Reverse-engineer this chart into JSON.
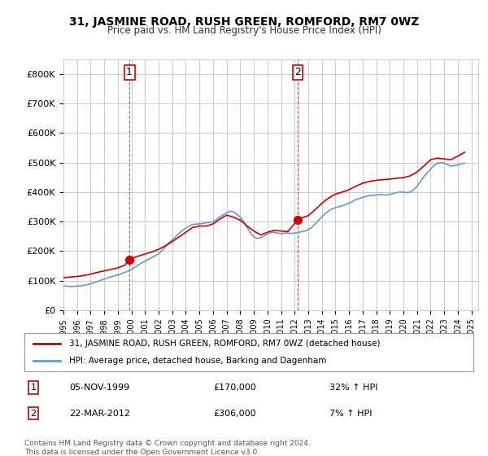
{
  "title": "31, JASMINE ROAD, RUSH GREEN, ROMFORD, RM7 0WZ",
  "subtitle": "Price paid vs. HM Land Registry's House Price Index (HPI)",
  "ylabel_ticks": [
    "£0",
    "£100K",
    "£200K",
    "£300K",
    "£400K",
    "£500K",
    "£600K",
    "£700K",
    "£800K"
  ],
  "ytick_vals": [
    0,
    100000,
    200000,
    300000,
    400000,
    500000,
    600000,
    700000,
    800000
  ],
  "ylim": [
    0,
    850000
  ],
  "xlim_start": 1995.0,
  "xlim_end": 2025.5,
  "background_color": "#ffffff",
  "grid_color": "#cccccc",
  "sale1_x": 1999.85,
  "sale1_y": 170000,
  "sale1_label": "1",
  "sale1_date": "05-NOV-1999",
  "sale1_price": "£170,000",
  "sale1_hpi": "32% ↑ HPI",
  "sale2_x": 2012.22,
  "sale2_y": 306000,
  "sale2_label": "2",
  "sale2_date": "22-MAR-2012",
  "sale2_price": "£306,000",
  "sale2_hpi": "7% ↑ HPI",
  "line_red_color": "#cc0000",
  "line_blue_color": "#6699cc",
  "legend_line1": "31, JASMINE ROAD, RUSH GREEN, ROMFORD, RM7 0WZ (detached house)",
  "legend_line2": "HPI: Average price, detached house, Barking and Dagenham",
  "footer": "Contains HM Land Registry data © Crown copyright and database right 2024.\nThis data is licensed under the Open Government Licence v3.0.",
  "hpi_data_x": [
    1995.0,
    1995.25,
    1995.5,
    1995.75,
    1996.0,
    1996.25,
    1996.5,
    1996.75,
    1997.0,
    1997.25,
    1997.5,
    1997.75,
    1998.0,
    1998.25,
    1998.5,
    1998.75,
    1999.0,
    1999.25,
    1999.5,
    1999.75,
    2000.0,
    2000.25,
    2000.5,
    2000.75,
    2001.0,
    2001.25,
    2001.5,
    2001.75,
    2002.0,
    2002.25,
    2002.5,
    2002.75,
    2003.0,
    2003.25,
    2003.5,
    2003.75,
    2004.0,
    2004.25,
    2004.5,
    2004.75,
    2005.0,
    2005.25,
    2005.5,
    2005.75,
    2006.0,
    2006.25,
    2006.5,
    2006.75,
    2007.0,
    2007.25,
    2007.5,
    2007.75,
    2008.0,
    2008.25,
    2008.5,
    2008.75,
    2009.0,
    2009.25,
    2009.5,
    2009.75,
    2010.0,
    2010.25,
    2010.5,
    2010.75,
    2011.0,
    2011.25,
    2011.5,
    2011.75,
    2012.0,
    2012.25,
    2012.5,
    2012.75,
    2013.0,
    2013.25,
    2013.5,
    2013.75,
    2014.0,
    2014.25,
    2014.5,
    2014.75,
    2015.0,
    2015.25,
    2015.5,
    2015.75,
    2016.0,
    2016.25,
    2016.5,
    2016.75,
    2017.0,
    2017.25,
    2017.5,
    2017.75,
    2018.0,
    2018.25,
    2018.5,
    2018.75,
    2019.0,
    2019.25,
    2019.5,
    2019.75,
    2020.0,
    2020.25,
    2020.5,
    2020.75,
    2021.0,
    2021.25,
    2021.5,
    2021.75,
    2022.0,
    2022.25,
    2022.5,
    2022.75,
    2023.0,
    2023.25,
    2023.5,
    2023.75,
    2024.0,
    2024.25,
    2024.5
  ],
  "hpi_data_y": [
    82000,
    81000,
    80000,
    80500,
    81000,
    82000,
    84000,
    86000,
    89000,
    93000,
    97000,
    101000,
    105000,
    109000,
    113000,
    116000,
    119000,
    123000,
    128000,
    133000,
    138000,
    145000,
    153000,
    160000,
    166000,
    172000,
    178000,
    184000,
    191000,
    202000,
    215000,
    228000,
    238000,
    248000,
    260000,
    270000,
    278000,
    285000,
    290000,
    292000,
    292000,
    294000,
    296000,
    297000,
    299000,
    307000,
    316000,
    323000,
    330000,
    335000,
    333000,
    325000,
    315000,
    300000,
    280000,
    262000,
    248000,
    243000,
    245000,
    252000,
    258000,
    263000,
    264000,
    261000,
    259000,
    261000,
    261000,
    260000,
    261000,
    263000,
    266000,
    268000,
    272000,
    280000,
    292000,
    304000,
    316000,
    327000,
    336000,
    343000,
    347000,
    350000,
    354000,
    358000,
    362000,
    368000,
    374000,
    378000,
    382000,
    385000,
    388000,
    389000,
    390000,
    391000,
    391000,
    390000,
    392000,
    395000,
    398000,
    400000,
    400000,
    398000,
    400000,
    408000,
    420000,
    435000,
    452000,
    466000,
    478000,
    490000,
    498000,
    500000,
    498000,
    492000,
    488000,
    490000,
    492000,
    495000,
    498000
  ],
  "red_data_x": [
    1995.0,
    1995.5,
    1996.0,
    1996.5,
    1997.0,
    1997.5,
    1998.0,
    1998.5,
    1999.0,
    1999.5,
    1999.85,
    2000.0,
    2000.5,
    2001.0,
    2001.5,
    2002.0,
    2002.5,
    2003.0,
    2003.5,
    2004.0,
    2004.5,
    2005.0,
    2005.5,
    2006.0,
    2006.5,
    2007.0,
    2007.5,
    2008.0,
    2008.5,
    2009.0,
    2009.5,
    2010.0,
    2010.5,
    2011.0,
    2011.5,
    2012.22,
    2012.5,
    2013.0,
    2013.5,
    2014.0,
    2014.5,
    2015.0,
    2015.5,
    2016.0,
    2016.5,
    2017.0,
    2017.5,
    2018.0,
    2018.5,
    2019.0,
    2019.5,
    2020.0,
    2020.5,
    2021.0,
    2021.5,
    2022.0,
    2022.5,
    2023.0,
    2023.5,
    2024.0,
    2024.5
  ],
  "red_data_y": [
    110000,
    112000,
    114000,
    117000,
    122000,
    128000,
    133000,
    138000,
    143000,
    152000,
    170000,
    175000,
    183000,
    190000,
    197000,
    206000,
    218000,
    232000,
    248000,
    264000,
    280000,
    285000,
    285000,
    292000,
    308000,
    322000,
    315000,
    305000,
    285000,
    268000,
    255000,
    264000,
    270000,
    268000,
    266000,
    306000,
    312000,
    320000,
    340000,
    362000,
    380000,
    393000,
    400000,
    408000,
    420000,
    430000,
    436000,
    440000,
    442000,
    444000,
    447000,
    449000,
    455000,
    468000,
    488000,
    510000,
    515000,
    512000,
    510000,
    522000,
    535000
  ]
}
